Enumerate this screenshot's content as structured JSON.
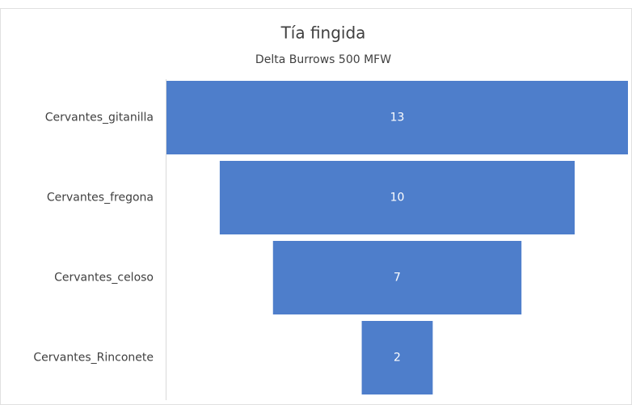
{
  "chart_data": {
    "type": "funnel",
    "title": "Tía fingida",
    "subtitle": "Delta Burrows 500 MFW",
    "categories": [
      "Cervantes_gitanilla",
      "Cervantes_fregona",
      "Cervantes_celoso",
      "Cervantes_Rinconete"
    ],
    "values": [
      13,
      10,
      7,
      2
    ],
    "color": "#4e7ecb"
  }
}
